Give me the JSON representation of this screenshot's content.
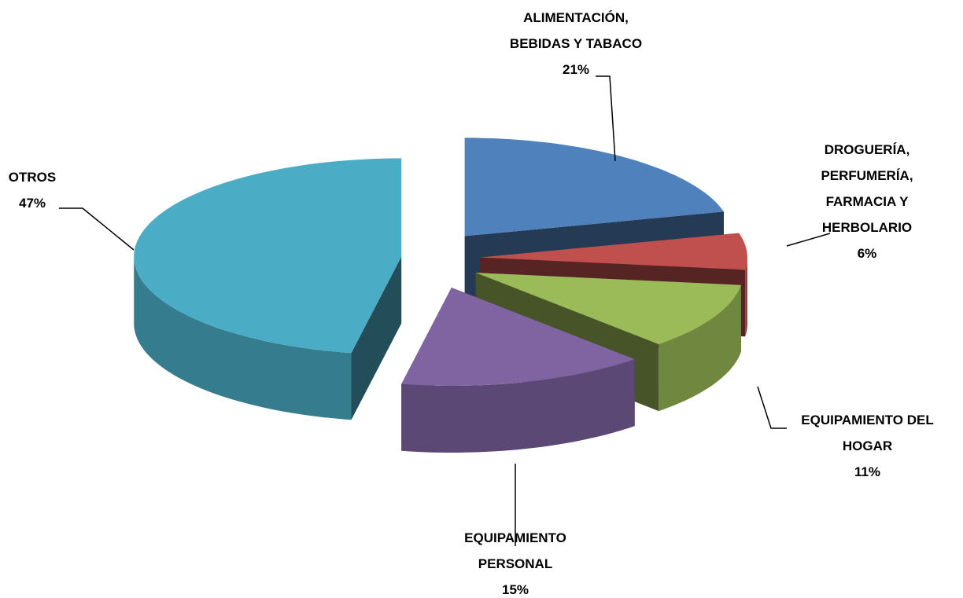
{
  "chart_data": {
    "type": "pie3d",
    "categories": [
      "ALIMENTACIÓN, BEBIDAS Y TABACO",
      "DROGUERÍA, PERFUMERÍA, FARMACIA Y HERBOLARIO",
      "EQUIPAMIENTO DEL HOGAR",
      "EQUIPAMIENTO PERSONAL",
      "OTROS"
    ],
    "values": [
      21,
      6,
      11,
      15,
      47
    ],
    "value_labels": [
      "21%",
      "6%",
      "11%",
      "15%",
      "47%"
    ],
    "colors": [
      "#4f81bd",
      "#c0504d",
      "#9bbb59",
      "#8064a2",
      "#4bacc6"
    ],
    "exploded": true
  }
}
